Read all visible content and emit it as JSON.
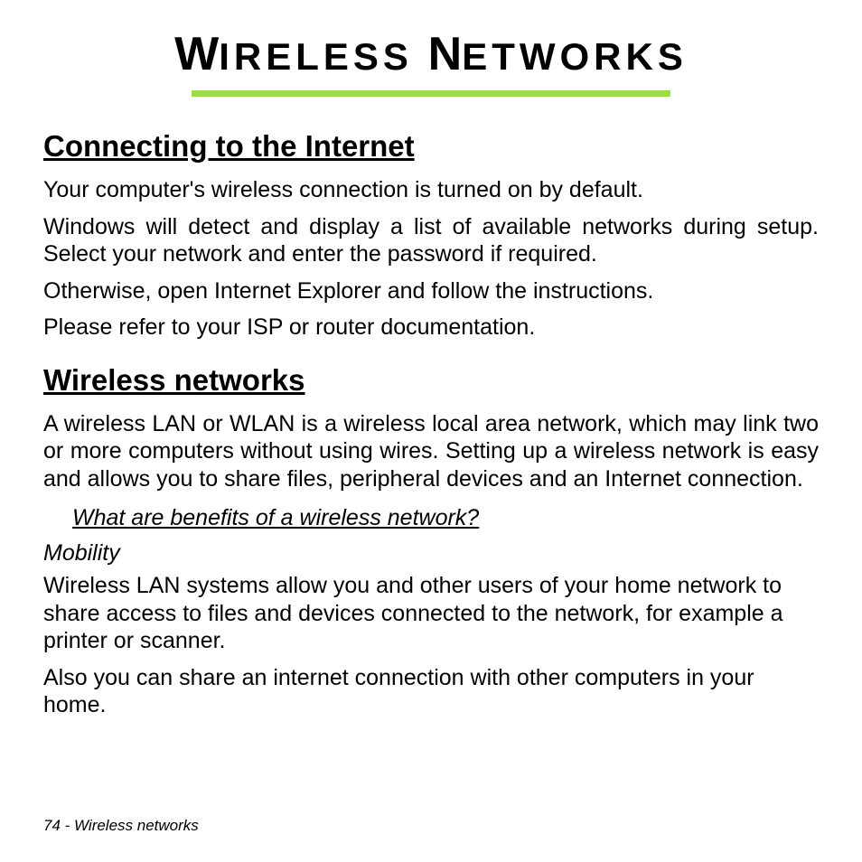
{
  "title": {
    "first_initial": "W",
    "first_rest": "IRELESS",
    "second_initial": "N",
    "second_rest": "ETWORKS"
  },
  "underline_color": "#9ade4c",
  "section1": {
    "heading": "Connecting to the Internet",
    "p1": "Your computer's wireless connection is turned on by default.",
    "p2": "Windows will detect and display a list of available networks during setup. Select your network and enter the password if required.",
    "p3": "Otherwise, open Internet Explorer and follow the instructions.",
    "p4": "Please refer to your ISP or router documentation."
  },
  "section2": {
    "heading": "Wireless networks",
    "p1": "A wireless LAN or WLAN is a wireless local area network, which may link two or more computers without using wires. Setting up a wireless network is easy and allows you to share files, peripheral devices and an Internet connection.",
    "sub_heading": "What are benefits of a wireless network?",
    "sub_label": "Mobility",
    "p2": "Wireless LAN systems allow you and other users of your home network to share access to files and devices connected to the network, for example a printer or scanner.",
    "p3": "Also you can share an internet connection with other computers in your home."
  },
  "footer": "74 - Wireless networks",
  "typography": {
    "title_fontsize": 42,
    "title_first_fontsize": 52,
    "heading_fontsize": 33,
    "body_fontsize": 25,
    "footer_fontsize": 17,
    "text_color": "#000000",
    "background_color": "#ffffff"
  }
}
